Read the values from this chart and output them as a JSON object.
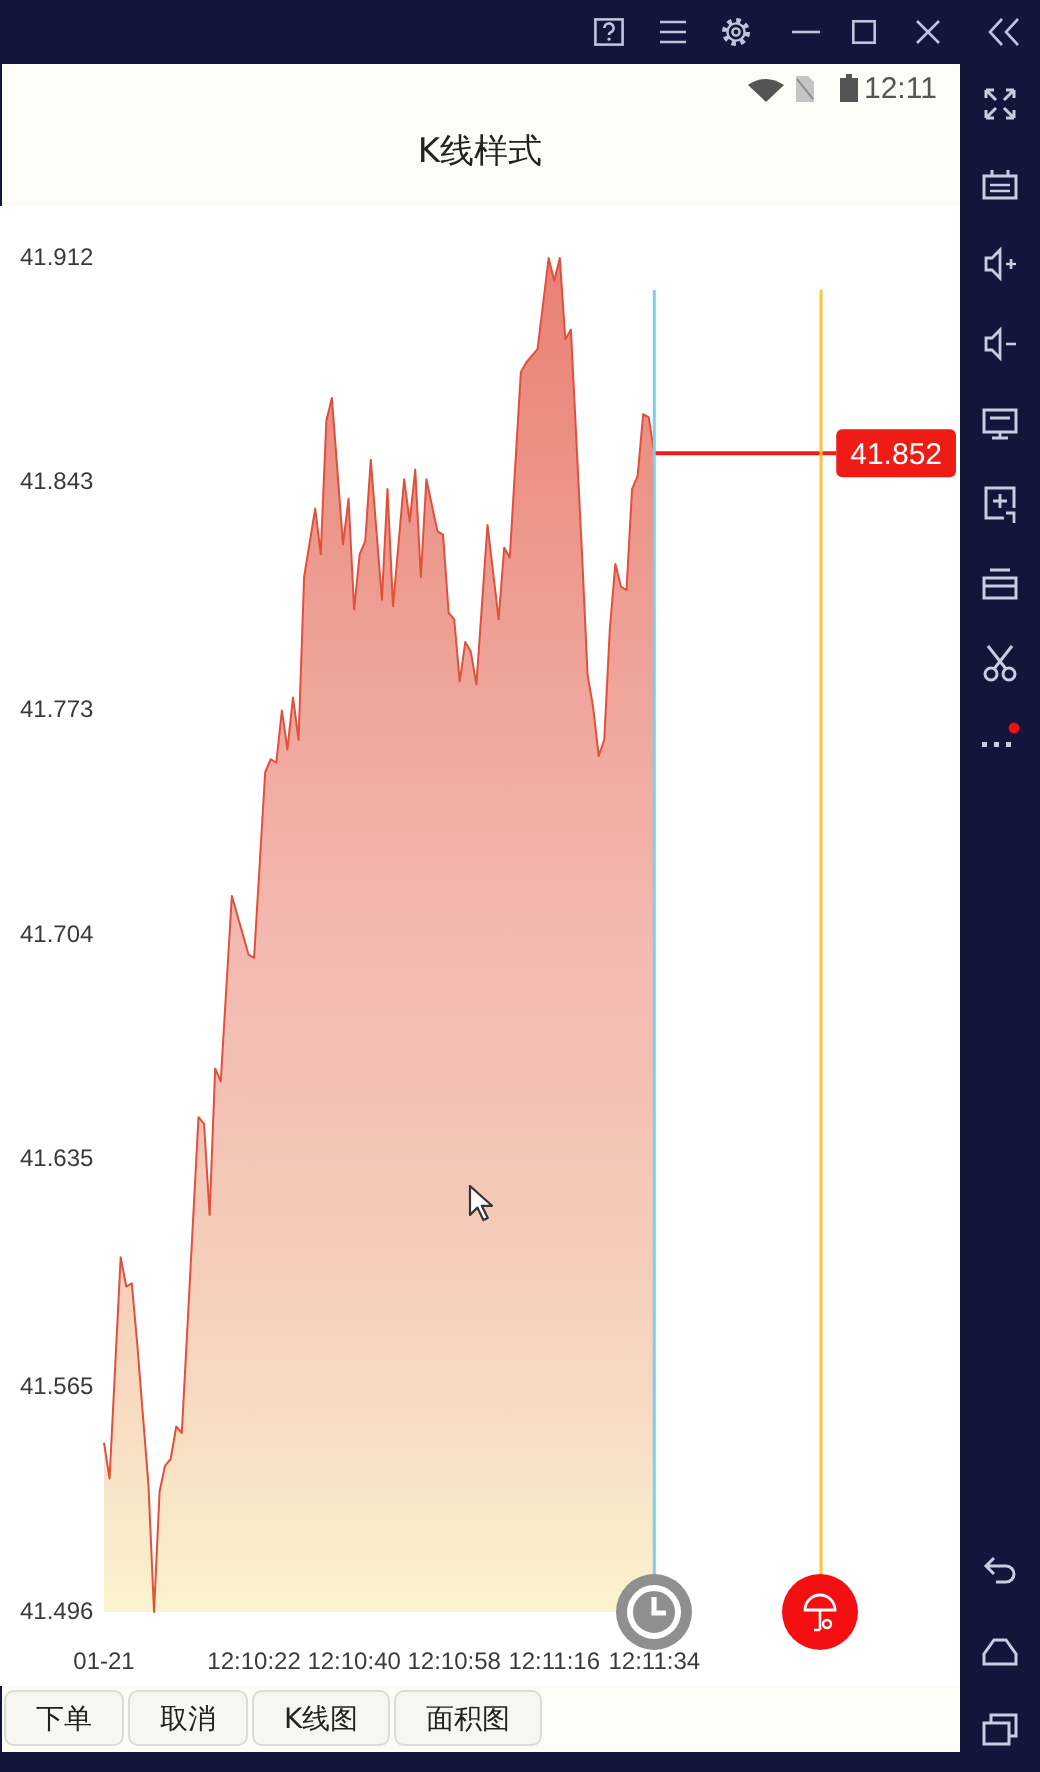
{
  "chart_data": {
    "type": "area",
    "title": "K线样式",
    "x": [
      12.165278,
      12.165556,
      12.166111,
      12.166389,
      12.166667,
      12.166944,
      12.1675,
      12.167778,
      12.168056,
      12.168333,
      12.168611,
      12.168889,
      12.169167,
      12.17,
      12.170278,
      12.170556,
      12.170833,
      12.171111,
      12.171667,
      12.1725,
      12.172778,
      12.173333,
      12.173611,
      12.173889,
      12.174167,
      12.174444,
      12.174722,
      12.175,
      12.175278,
      12.175833,
      12.176111,
      12.176389,
      12.176667,
      12.177222,
      12.1775,
      12.177778,
      12.178056,
      12.178333,
      12.178611,
      12.179167,
      12.179444,
      12.179722,
      12.180278,
      12.180556,
      12.180833,
      12.181111,
      12.181389,
      12.181944,
      12.182222,
      12.1825,
      12.182778,
      12.183056,
      12.183333,
      12.183611,
      12.183889,
      12.184444,
      12.185,
      12.185278,
      12.185556,
      12.186111,
      12.186389,
      12.186944,
      12.187222,
      12.1875,
      12.187778,
      12.188056,
      12.188333,
      12.188611,
      12.189167,
      12.189444,
      12.189722,
      12.19,
      12.190278,
      12.190556,
      12.190833,
      12.191111,
      12.191389,
      12.191667,
      12.191944,
      12.192222,
      12.1925,
      12.192778
    ],
    "series": [
      {
        "color": "#e0503c",
        "values": [
          41.548,
          41.537,
          41.605,
          41.596,
          41.597,
          41.578,
          41.535,
          41.496,
          41.533,
          41.541,
          41.543,
          41.553,
          41.551,
          41.648,
          41.646,
          41.618,
          41.663,
          41.659,
          41.716,
          41.698,
          41.697,
          41.754,
          41.758,
          41.757,
          41.773,
          41.761,
          41.777,
          41.764,
          41.814,
          41.835,
          41.821,
          41.862,
          41.869,
          41.824,
          41.838,
          41.804,
          41.821,
          41.825,
          41.85,
          41.807,
          41.841,
          41.805,
          41.844,
          41.831,
          41.847,
          41.814,
          41.844,
          41.828,
          41.827,
          41.803,
          41.801,
          41.782,
          41.794,
          41.791,
          41.781,
          41.83,
          41.801,
          41.823,
          41.82,
          41.877,
          41.88,
          41.884,
          41.898,
          41.912,
          41.905,
          41.912,
          41.887,
          41.89,
          41.821,
          41.784,
          41.774,
          41.759,
          41.764,
          41.798,
          41.818,
          41.811,
          41.81,
          41.841,
          41.845,
          41.864,
          41.863,
          41.852
        ]
      }
    ],
    "xlim": [
      12.165278,
      12.208056
    ],
    "ylim": [
      41.496,
      41.912
    ],
    "xticks": [
      {
        "value": 12.165278,
        "label": "01-21"
      },
      {
        "value": 12.172778,
        "label": "12:10:22"
      },
      {
        "value": 12.177778,
        "label": "12:10:40"
      },
      {
        "value": 12.182778,
        "label": "12:10:58"
      },
      {
        "value": 12.187778,
        "label": "12:11:16"
      },
      {
        "value": 12.192778,
        "label": "12:11:34"
      }
    ],
    "yticks": [
      41.496,
      41.565,
      41.635,
      41.704,
      41.773,
      41.843,
      41.912
    ],
    "ref_lines": [
      {
        "axis": "y",
        "value": 41.852,
        "label": "41.852",
        "color": "#ee1c14"
      },
      {
        "axis": "x",
        "value": 12.192778,
        "color": "#7ccdf0"
      },
      {
        "axis": "x",
        "value": 12.201111,
        "color": "#ffc23a"
      }
    ],
    "annotations": [
      "12:11",
      "下单",
      "取消",
      "K线图",
      "面积图"
    ]
  }
}
